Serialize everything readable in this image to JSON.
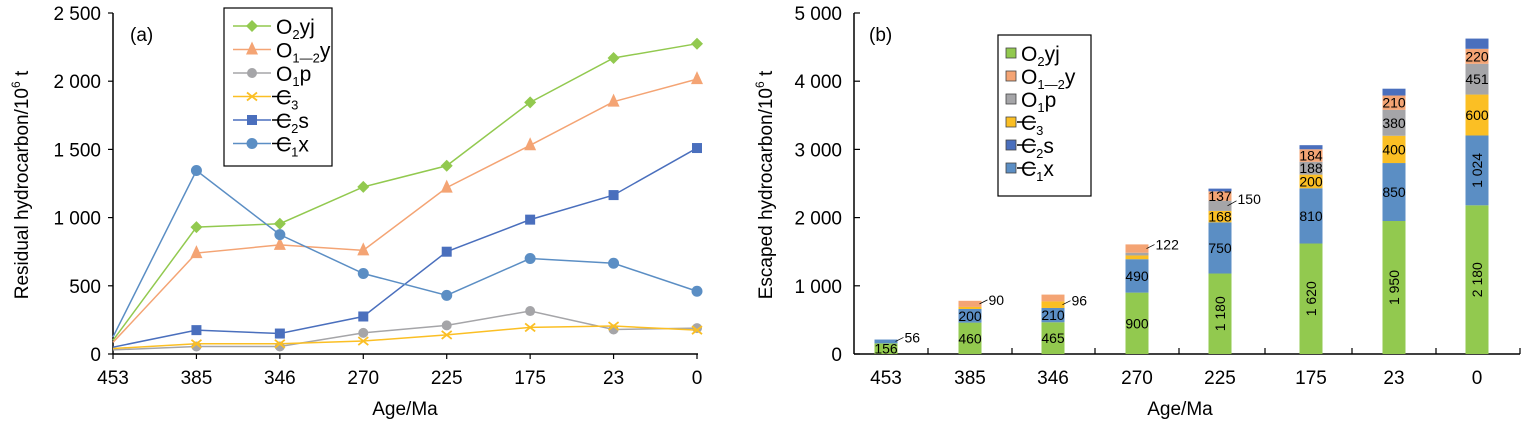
{
  "chart_data": [
    {
      "type": "line",
      "panel_label": "(a)",
      "xlabel": "Age/Ma",
      "ylabel": "Residual hydrocarbon/10⁶ t",
      "ylabel_main": "Residual hydrocarbon/10",
      "ylabel_sup": "6",
      "ylabel_tail": " t",
      "categories": [
        "453",
        "385",
        "346",
        "270",
        "225",
        "175",
        "23",
        "0"
      ],
      "yticks": [
        0,
        500,
        1000,
        1500,
        2000,
        2500
      ],
      "ytick_labels": [
        "0",
        "500",
        "1 000",
        "1 500",
        "2 000",
        "2 500"
      ],
      "ylim": [
        0,
        2500
      ],
      "grid": false,
      "legend_position": "top-center",
      "series": [
        {
          "key": "O2yj",
          "name": "O₂yj",
          "base": "O",
          "sub": "2",
          "tail": "yj",
          "strike": false,
          "color": "#92c94f",
          "marker": "diamond",
          "values": [
            100,
            930,
            955,
            1225,
            1380,
            1845,
            2170,
            2275
          ]
        },
        {
          "key": "O1-2y",
          "name": "O₁₋₂y",
          "base": "O",
          "sub": "1—2",
          "tail": "y",
          "strike": false,
          "color": "#f4a474",
          "marker": "triangle",
          "values": [
            85,
            740,
            800,
            760,
            1220,
            1530,
            1850,
            2015
          ]
        },
        {
          "key": "O1p",
          "name": "O₁p",
          "base": "O",
          "sub": "1",
          "tail": "p",
          "strike": false,
          "color": "#a5a5a8",
          "marker": "circle-small",
          "values": [
            30,
            55,
            55,
            155,
            210,
            315,
            180,
            190
          ]
        },
        {
          "key": "C3",
          "name": "Є₃",
          "base": "C",
          "sub": "3",
          "tail": "",
          "strike": true,
          "color": "#fbbf24",
          "marker": "x",
          "values": [
            40,
            75,
            75,
            95,
            140,
            195,
            205,
            175
          ]
        },
        {
          "key": "C2s",
          "name": "Є₂s",
          "base": "C",
          "sub": "2",
          "tail": "s",
          "strike": true,
          "color": "#4a6fbd",
          "marker": "square",
          "values": [
            50,
            175,
            150,
            275,
            750,
            985,
            1165,
            1510
          ]
        },
        {
          "key": "C1x",
          "name": "Є₁x",
          "base": "C",
          "sub": "1",
          "tail": "x",
          "strike": true,
          "color": "#5b8ec4",
          "marker": "circle",
          "values": [
            125,
            1345,
            875,
            590,
            430,
            700,
            665,
            460
          ]
        }
      ]
    },
    {
      "type": "bar",
      "stacked": true,
      "panel_label": "(b)",
      "xlabel": "Age/Ma",
      "ylabel": "Escaped hydrocarbon/10⁶ t",
      "ylabel_main": "Escaped hydrocarbon/10",
      "ylabel_sup": "6",
      "ylabel_tail": " t",
      "categories": [
        "453",
        "385",
        "346",
        "270",
        "225",
        "175",
        "23",
        "0"
      ],
      "yticks": [
        0,
        1000,
        2000,
        3000,
        4000,
        5000
      ],
      "ytick_labels": [
        "0",
        "1 000",
        "2 000",
        "3 000",
        "4 000",
        "5 000"
      ],
      "ylim": [
        0,
        5000
      ],
      "grid": false,
      "legend_position": "top-center",
      "legend": [
        {
          "key": "O2yj",
          "base": "O",
          "sub": "2",
          "tail": "yj",
          "strike": false,
          "color": "#92c94f"
        },
        {
          "key": "O1-2y",
          "base": "O",
          "sub": "1—2",
          "tail": "y",
          "strike": false,
          "color": "#f4a474"
        },
        {
          "key": "O1p",
          "base": "O",
          "sub": "1",
          "tail": "p",
          "strike": false,
          "color": "#a5a5a8"
        },
        {
          "key": "C3",
          "base": "C",
          "sub": "3",
          "tail": "",
          "strike": true,
          "color": "#fbbf24"
        },
        {
          "key": "C2s",
          "base": "C",
          "sub": "2",
          "tail": "s",
          "strike": true,
          "color": "#4a6fbd"
        },
        {
          "key": "C1x",
          "base": "C",
          "sub": "1",
          "tail": "x",
          "strike": true,
          "color": "#5b8ec4"
        }
      ],
      "stack_order": [
        "O2yj",
        "C1x",
        "C3",
        "O1p",
        "O1-2y",
        "C2s"
      ],
      "series": [
        {
          "key": "O2yj",
          "color": "#92c94f",
          "values": [
            156,
            460,
            465,
            900,
            1180,
            1620,
            1950,
            2180
          ],
          "labels": [
            "156",
            "460",
            "465",
            "900",
            "1 180",
            "1 620",
            "1 950",
            "2 180"
          ]
        },
        {
          "key": "C1x",
          "color": "#5b8ec4",
          "values": [
            56,
            200,
            210,
            490,
            750,
            810,
            850,
            1024
          ],
          "labels": [
            "56",
            "200",
            "210",
            "490",
            "750",
            "810",
            "850",
            "1 024"
          ]
        },
        {
          "key": "C3",
          "color": "#fbbf24",
          "values": [
            0,
            30,
            96,
            55,
            168,
            200,
            400,
            600
          ],
          "labels": [
            "",
            "",
            "96",
            "",
            "168",
            "200",
            "400",
            "600"
          ]
        },
        {
          "key": "O1p",
          "color": "#a5a5a8",
          "values": [
            0,
            0,
            0,
            40,
            150,
            188,
            380,
            451
          ],
          "labels": [
            "",
            "",
            "",
            "",
            "150",
            "188",
            "380",
            "451"
          ]
        },
        {
          "key": "O1-2y",
          "color": "#f4a474",
          "values": [
            0,
            90,
            100,
            122,
            137,
            184,
            210,
            220
          ],
          "labels": [
            "",
            "90",
            "",
            "122",
            "137",
            "184",
            "210",
            "220"
          ]
        },
        {
          "key": "C2s",
          "color": "#4a6fbd",
          "values": [
            0,
            0,
            0,
            0,
            40,
            60,
            100,
            150
          ],
          "labels": [
            "",
            "",
            "",
            "",
            "",
            "",
            "",
            ""
          ]
        }
      ]
    }
  ]
}
